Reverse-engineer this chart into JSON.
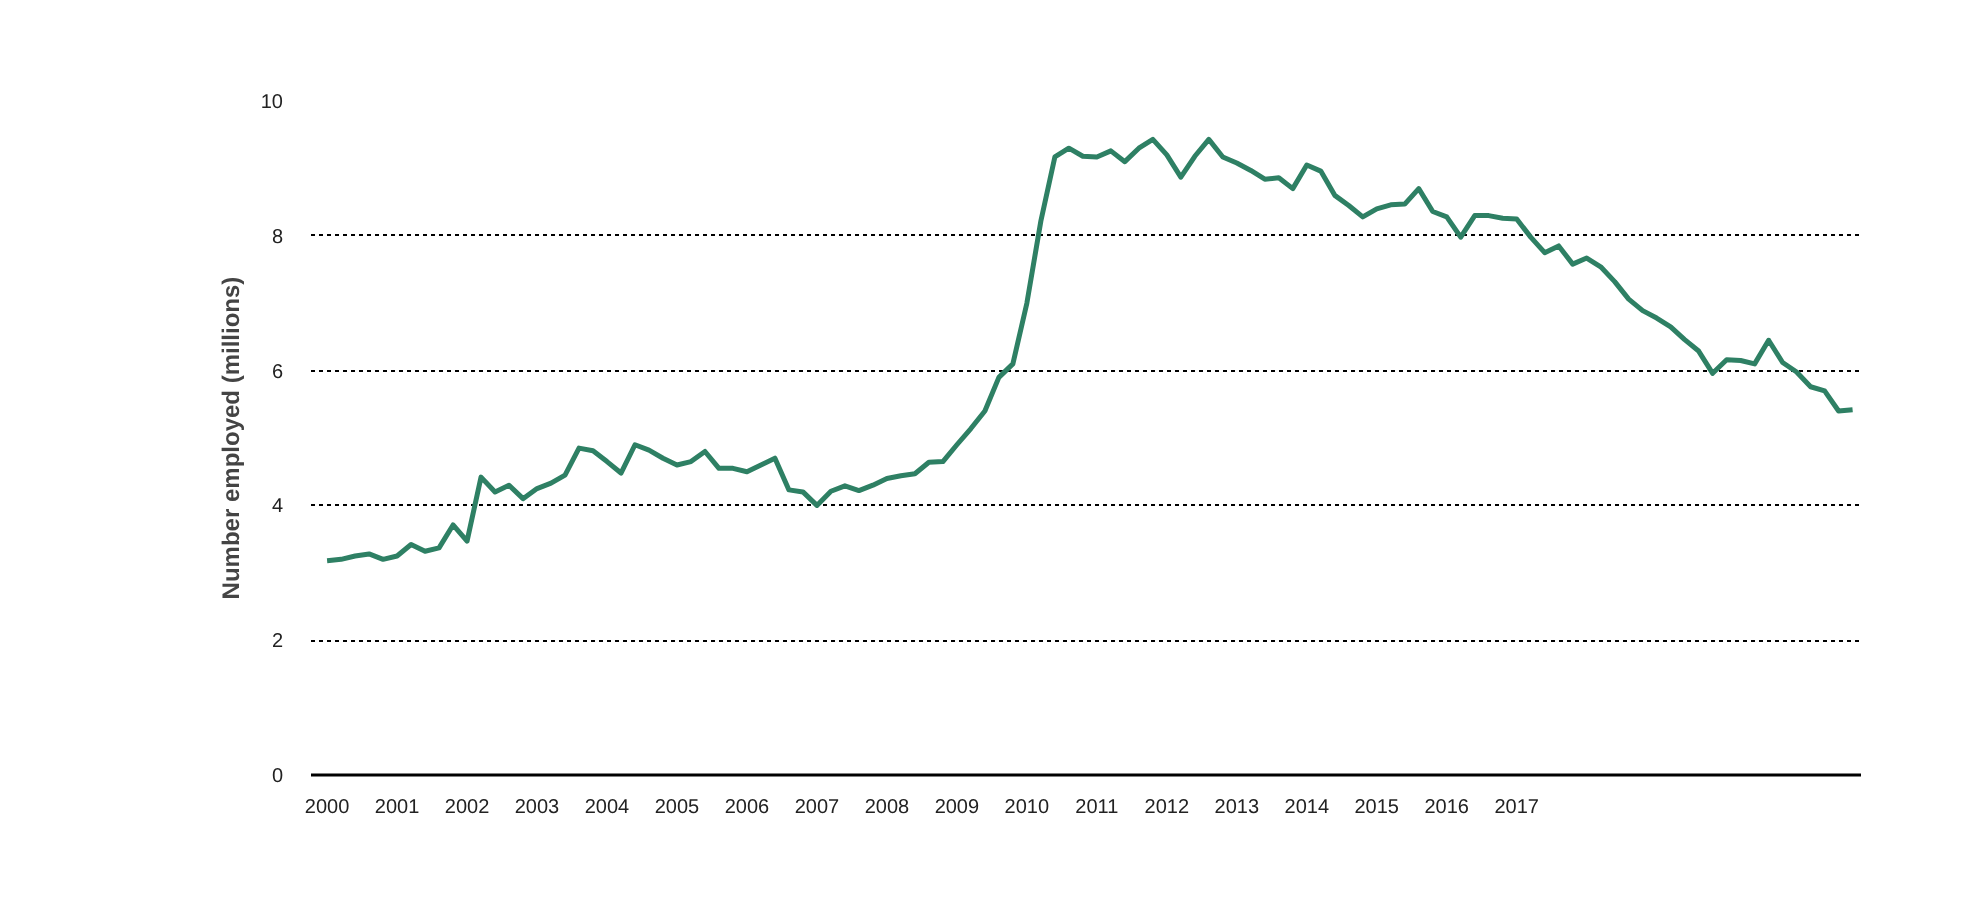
{
  "chart_data": {
    "type": "line",
    "ylabel": "Number employed (millions)",
    "ylim": [
      0,
      10
    ],
    "yticks": [
      0,
      2,
      4,
      6,
      8,
      10
    ],
    "categories": [
      "2000",
      null,
      null,
      null,
      null,
      "2001",
      null,
      null,
      null,
      null,
      "2002",
      null,
      null,
      null,
      null,
      "2003",
      null,
      null,
      null,
      null,
      "2004",
      null,
      null,
      null,
      null,
      "2005",
      null,
      null,
      null,
      null,
      "2006",
      null,
      null,
      null,
      null,
      "2007",
      null,
      null,
      null,
      null,
      "2008",
      null,
      null,
      null,
      null,
      "2009",
      null,
      null,
      null,
      null,
      "2010",
      null,
      null,
      null,
      null,
      "2011",
      null,
      null,
      null,
      null,
      "2012",
      null,
      null,
      null,
      null,
      "2013",
      null,
      null,
      null,
      null,
      "2014",
      null,
      null,
      null,
      null,
      "2015",
      null,
      null,
      null,
      null,
      "2016",
      null,
      null,
      null,
      null,
      "2017",
      null,
      null,
      null,
      null,
      null,
      null,
      null,
      null,
      null,
      null,
      null,
      null,
      null,
      null,
      null,
      null,
      null,
      null,
      null,
      null,
      null,
      null,
      null,
      null
    ],
    "grid": "y",
    "marker": "none",
    "line_style": "solid",
    "series": [
      {
        "color": "#2e8064",
        "values": [
          3.18,
          3.2,
          3.25,
          3.28,
          3.2,
          3.25,
          3.42,
          3.32,
          3.37,
          3.71,
          3.47,
          4.42,
          4.2,
          4.3,
          4.1,
          4.25,
          4.33,
          4.45,
          4.85,
          4.81,
          4.65,
          4.48,
          4.9,
          4.82,
          4.7,
          4.6,
          4.65,
          4.8,
          4.55,
          4.55,
          4.5,
          4.6,
          4.7,
          4.23,
          4.2,
          4.0,
          4.21,
          4.29,
          4.22,
          4.3,
          4.4,
          4.44,
          4.47,
          4.64,
          4.65,
          4.9,
          5.14,
          5.4,
          5.9,
          6.1,
          7.0,
          8.22,
          9.17,
          9.3,
          9.18,
          9.17,
          9.26,
          9.1,
          9.3,
          9.43,
          9.2,
          8.87,
          9.18,
          9.43,
          9.17,
          9.08,
          8.97,
          8.84,
          8.86,
          8.7,
          9.05,
          8.96,
          8.6,
          8.45,
          8.28,
          8.4,
          8.46,
          8.47,
          8.7,
          8.36,
          8.28,
          7.98,
          8.3,
          8.3,
          8.26,
          8.25,
          7.98,
          7.75,
          7.85,
          7.58,
          7.67,
          7.54,
          7.32,
          7.06,
          6.89,
          6.78,
          6.65,
          6.46,
          6.29,
          5.96,
          6.16,
          6.15,
          6.1,
          6.45,
          6.12,
          5.98,
          5.76,
          5.7,
          5.4,
          5.42
        ]
      }
    ]
  }
}
